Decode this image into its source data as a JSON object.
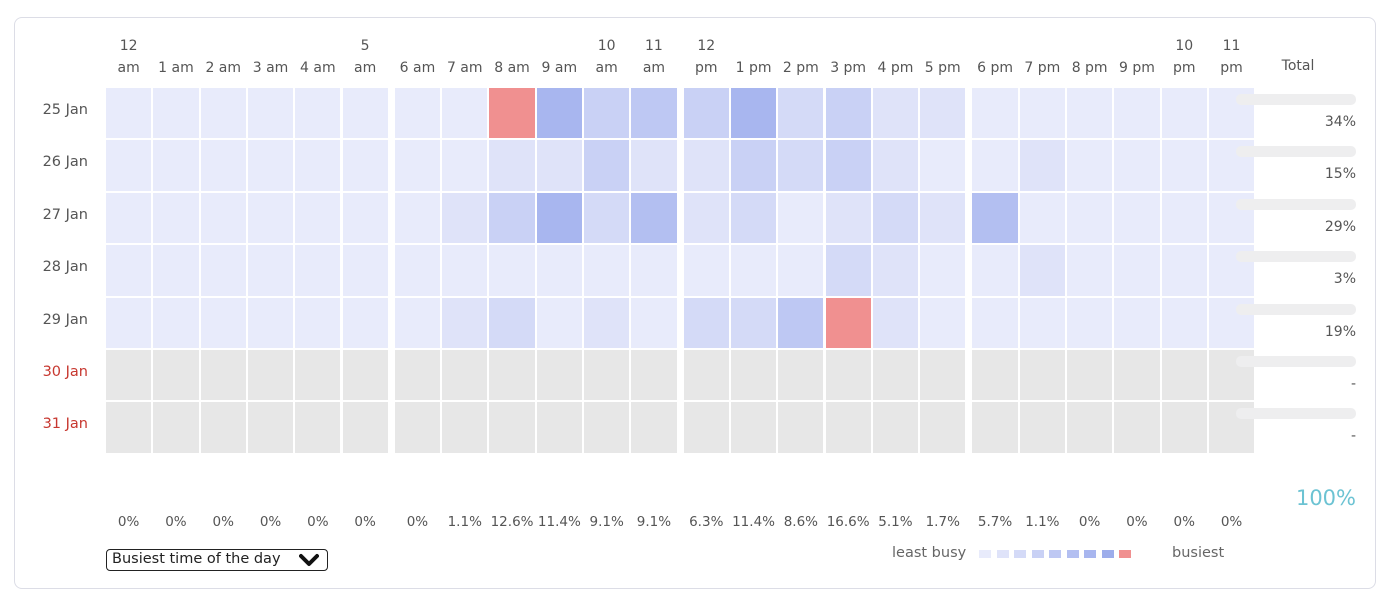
{
  "chart_data": {
    "type": "heatmap",
    "hours": [
      "12\nam",
      "1 am",
      "2 am",
      "3 am",
      "4 am",
      "5\nam",
      "6 am",
      "7 am",
      "8 am",
      "9 am",
      "10\nam",
      "11\nam",
      "12\npm",
      "1 pm",
      "2 pm",
      "3 pm",
      "4 pm",
      "5 pm",
      "6 pm",
      "7 pm",
      "8 pm",
      "9 pm",
      "10\npm",
      "11\npm"
    ],
    "total_header": "Total",
    "days": [
      {
        "label": "25 Jan",
        "weekend": false,
        "total": "34%",
        "total_fraction": 0.34,
        "levels": [
          0,
          0,
          0,
          0,
          0,
          0,
          0,
          0,
          9,
          6,
          3,
          4,
          3,
          6,
          2,
          3,
          1,
          1,
          0,
          0,
          0,
          0,
          0,
          0
        ]
      },
      {
        "label": "26 Jan",
        "weekend": false,
        "total": "15%",
        "total_fraction": 0.15,
        "levels": [
          0,
          0,
          0,
          0,
          0,
          0,
          0,
          0,
          1,
          1,
          3,
          1,
          1,
          3,
          2,
          3,
          1,
          0,
          0,
          1,
          0,
          0,
          0,
          0
        ]
      },
      {
        "label": "27 Jan",
        "weekend": false,
        "total": "29%",
        "total_fraction": 0.29,
        "levels": [
          0,
          0,
          0,
          0,
          0,
          0,
          0,
          1,
          3,
          6,
          2,
          5,
          1,
          2,
          0,
          1,
          2,
          1,
          5,
          0,
          0,
          0,
          0,
          0
        ]
      },
      {
        "label": "28 Jan",
        "weekend": false,
        "total": "3%",
        "total_fraction": 0.03,
        "levels": [
          0,
          0,
          0,
          0,
          0,
          0,
          0,
          0,
          0,
          0,
          0,
          0,
          0,
          0,
          0,
          2,
          1,
          0,
          0,
          1,
          0,
          0,
          0,
          0
        ]
      },
      {
        "label": "29 Jan",
        "weekend": false,
        "total": "19%",
        "total_fraction": 0.19,
        "levels": [
          0,
          0,
          0,
          0,
          0,
          0,
          0,
          1,
          2,
          0,
          1,
          0,
          2,
          2,
          4,
          9,
          1,
          0,
          0,
          0,
          0,
          0,
          0,
          0
        ]
      },
      {
        "label": "30 Jan",
        "weekend": true,
        "total": "-",
        "total_fraction": 0,
        "levels": [
          -1,
          -1,
          -1,
          -1,
          -1,
          -1,
          -1,
          -1,
          -1,
          -1,
          -1,
          -1,
          -1,
          -1,
          -1,
          -1,
          -1,
          -1,
          -1,
          -1,
          -1,
          -1,
          -1,
          -1
        ]
      },
      {
        "label": "31 Jan",
        "weekend": true,
        "total": "-",
        "total_fraction": 0,
        "levels": [
          -1,
          -1,
          -1,
          -1,
          -1,
          -1,
          -1,
          -1,
          -1,
          -1,
          -1,
          -1,
          -1,
          -1,
          -1,
          -1,
          -1,
          -1,
          -1,
          -1,
          -1,
          -1,
          -1,
          -1
        ]
      }
    ],
    "hour_totals": [
      "0%",
      "0%",
      "0%",
      "0%",
      "0%",
      "0%",
      "0%",
      "1.1%",
      "12.6%",
      "11.4%",
      "9.1%",
      "9.1%",
      "6.3%",
      "11.4%",
      "8.6%",
      "16.6%",
      "5.1%",
      "1.7%",
      "5.7%",
      "1.1%",
      "0%",
      "0%",
      "0%",
      "0%"
    ],
    "grand_total": "100%",
    "colors": {
      "scale": [
        "#e8ebfb",
        "#dfe3f9",
        "#d4daf7",
        "#c9d1f5",
        "#bec8f3",
        "#b3bff1",
        "#a8b6ef",
        "#9dadeb",
        "#94a6ea",
        "#f09090"
      ],
      "empty": "#e7e7e7"
    }
  },
  "controls": {
    "select_label": "Busiest time of the day",
    "select_icon": "chevron-down-icon"
  },
  "legend": {
    "least": "least busy",
    "most": "busiest",
    "swatches": [
      "#e8ebfb",
      "#dfe3f9",
      "#d4daf7",
      "#c9d1f5",
      "#bec8f3",
      "#b3bff1",
      "#a8b6ef",
      "#9dadeb",
      "#f09090"
    ]
  }
}
